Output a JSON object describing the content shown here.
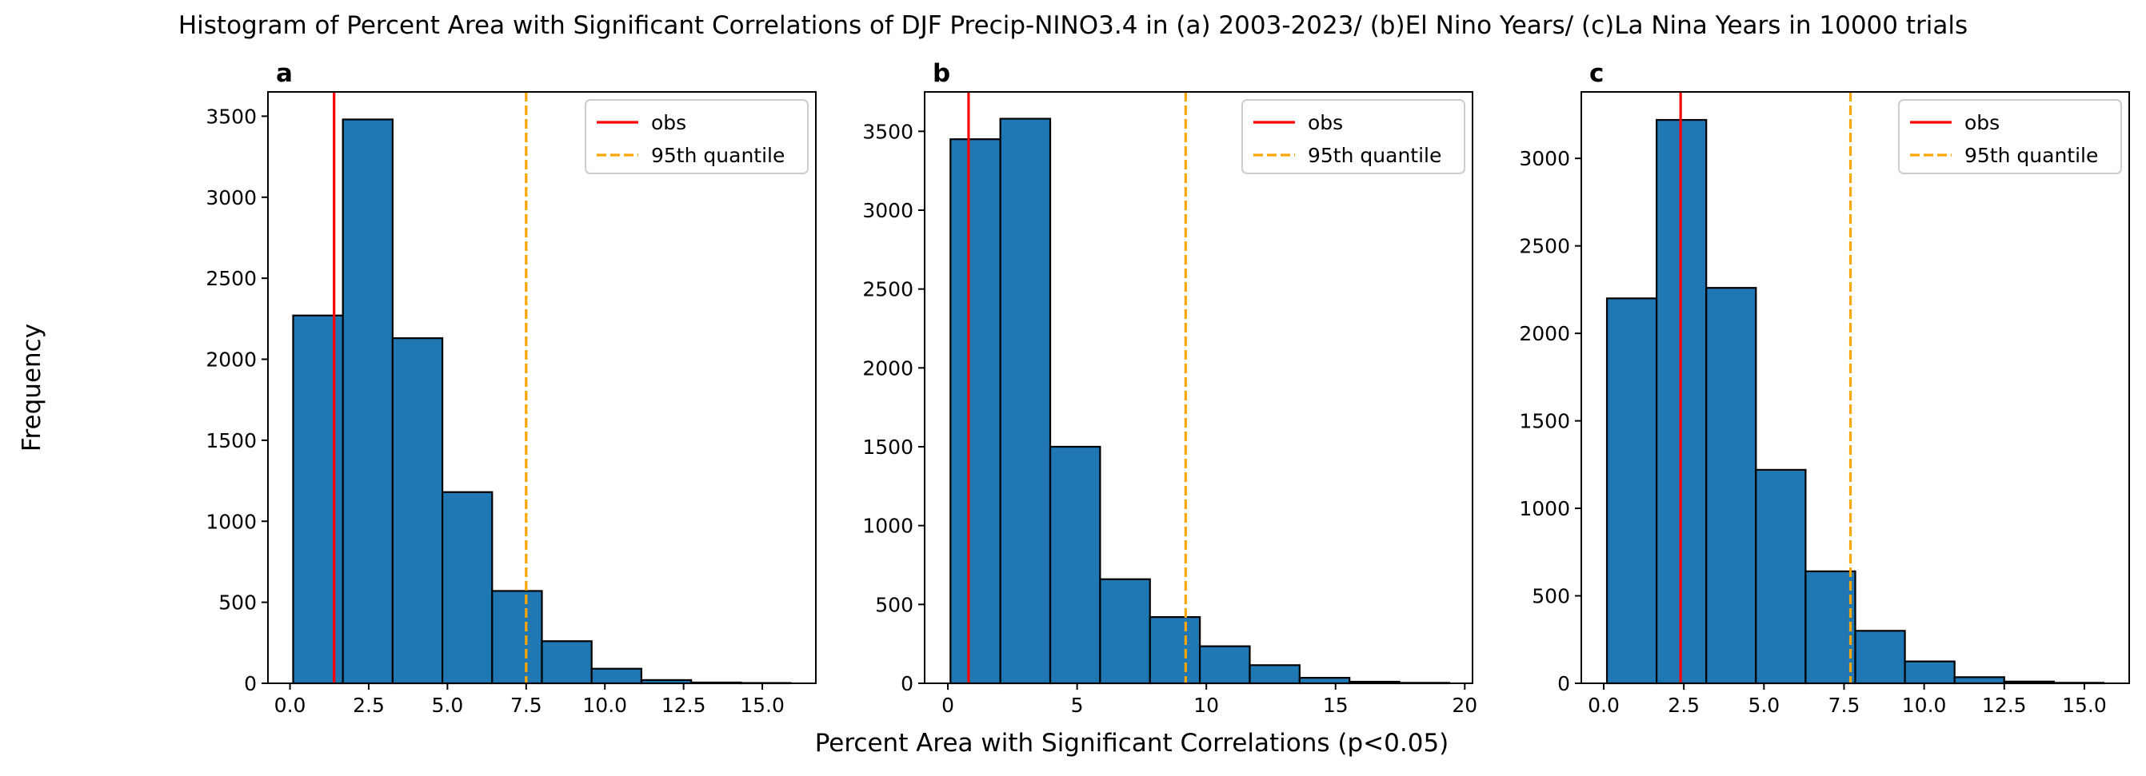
{
  "figure": {
    "title": "Histogram of Percent Area with Significant Correlations of DJF Precip-NINO3.4 in (a) 2003-2023/ (b)El Nino Years/ (c)La Nina Years in 10000 trials",
    "xlabel": "Percent Area with Significant Correlations (p<0.05)",
    "ylabel": "Frequency"
  },
  "colors": {
    "bar_fill": "#1f77b4",
    "bar_edge": "#000000",
    "obs_line": "#ff0000",
    "quantile_line": "#ffa500"
  },
  "chart_data": [
    {
      "type": "bar",
      "panel_label": "a",
      "bin_edges": [
        0.1,
        1.68,
        3.26,
        4.84,
        6.42,
        8.0,
        9.58,
        11.16,
        12.74,
        14.32,
        15.9
      ],
      "values": [
        2270,
        3480,
        2130,
        1180,
        570,
        260,
        90,
        20,
        5,
        2
      ],
      "obs": 1.4,
      "q95": 7.5,
      "xlim": [
        -0.7,
        16.7
      ],
      "ylim": [
        0,
        3650
      ],
      "xticks": [
        0,
        2.5,
        5,
        7.5,
        10,
        12.5,
        15
      ],
      "xtick_labels": [
        "0.0",
        "2.5",
        "5.0",
        "7.5",
        "10.0",
        "12.5",
        "15.0"
      ],
      "yticks": [
        0,
        500,
        1000,
        1500,
        2000,
        2500,
        3000,
        3500
      ],
      "ytick_labels": [
        "0",
        "500",
        "1000",
        "1500",
        "2000",
        "2500",
        "3000",
        "3500"
      ],
      "legend": {
        "placement": "upper right",
        "entries": [
          "obs",
          "95th quantile"
        ]
      }
    },
    {
      "type": "bar",
      "panel_label": "b",
      "bin_edges": [
        0.1,
        2.03,
        3.96,
        5.89,
        7.82,
        9.75,
        11.68,
        13.61,
        15.54,
        17.47,
        19.4
      ],
      "values": [
        3450,
        3580,
        1500,
        660,
        420,
        235,
        115,
        35,
        10,
        3
      ],
      "obs": 0.8,
      "q95": 9.2,
      "xlim": [
        -0.9,
        20.3
      ],
      "ylim": [
        0,
        3750
      ],
      "xticks": [
        0,
        5,
        10,
        15,
        20
      ],
      "xtick_labels": [
        "0",
        "5",
        "10",
        "15",
        "20"
      ],
      "yticks": [
        0,
        500,
        1000,
        1500,
        2000,
        2500,
        3000,
        3500
      ],
      "ytick_labels": [
        "0",
        "500",
        "1000",
        "1500",
        "2000",
        "2500",
        "3000",
        "3500"
      ],
      "legend": {
        "placement": "upper right",
        "entries": [
          "obs",
          "95th quantile"
        ]
      }
    },
    {
      "type": "bar",
      "panel_label": "c",
      "bin_edges": [
        0.1,
        1.65,
        3.2,
        4.75,
        6.3,
        7.85,
        9.4,
        10.95,
        12.5,
        14.05,
        15.6
      ],
      "values": [
        2200,
        3220,
        2260,
        1220,
        640,
        300,
        125,
        35,
        10,
        3
      ],
      "obs": 2.4,
      "q95": 7.7,
      "xlim": [
        -0.7,
        16.4
      ],
      "ylim": [
        0,
        3380
      ],
      "xticks": [
        0,
        2.5,
        5,
        7.5,
        10,
        12.5,
        15
      ],
      "xtick_labels": [
        "0.0",
        "2.5",
        "5.0",
        "7.5",
        "10.0",
        "12.5",
        "15.0"
      ],
      "yticks": [
        0,
        500,
        1000,
        1500,
        2000,
        2500,
        3000
      ],
      "ytick_labels": [
        "0",
        "500",
        "1000",
        "1500",
        "2000",
        "2500",
        "3000"
      ],
      "legend": {
        "placement": "upper right",
        "entries": [
          "obs",
          "95th quantile"
        ]
      }
    }
  ]
}
